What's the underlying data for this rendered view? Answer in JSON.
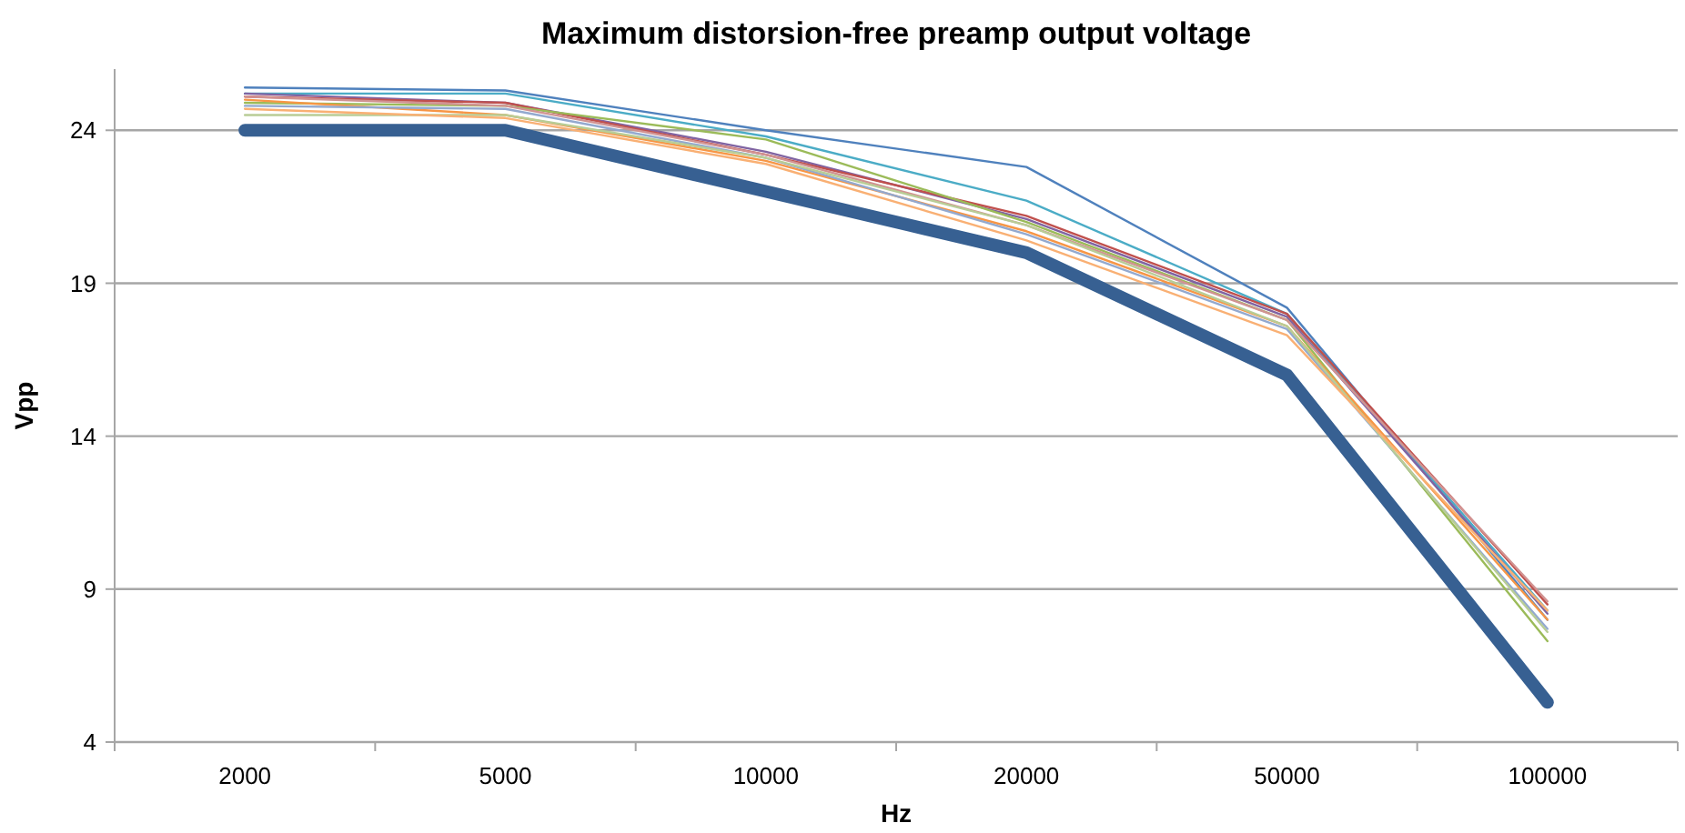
{
  "chart_data": {
    "type": "line",
    "title": "Maximum distorsion-free preamp output voltage",
    "xlabel": "Hz",
    "ylabel": "Vpp",
    "categories": [
      "2000",
      "5000",
      "10000",
      "20000",
      "50000",
      "100000"
    ],
    "ylim": [
      4,
      26
    ],
    "yticks": [
      4,
      9,
      14,
      19,
      24
    ],
    "grid": "y",
    "marker": "none",
    "line_style": "solid",
    "series": [
      {
        "color": "#4f81bd",
        "values": [
          25.4,
          25.3,
          24.0,
          22.8,
          18.2,
          8.0
        ]
      },
      {
        "color": "#4bacc6",
        "values": [
          25.2,
          25.2,
          23.8,
          21.7,
          18.0,
          8.3
        ]
      },
      {
        "color": "#8064a2",
        "values": [
          25.2,
          24.9,
          23.3,
          21.1,
          17.9,
          8.2
        ]
      },
      {
        "color": "#c0504d",
        "values": [
          25.1,
          24.9,
          23.2,
          21.2,
          18.0,
          8.5
        ]
      },
      {
        "color": "#9bbb59",
        "values": [
          24.9,
          24.8,
          23.7,
          21.0,
          17.8,
          7.3
        ]
      },
      {
        "color": "#f79646",
        "values": [
          25.0,
          24.5,
          23.0,
          20.7,
          17.6,
          8.0
        ]
      },
      {
        "color": "#93a9cf",
        "values": [
          24.8,
          24.7,
          23.1,
          20.6,
          17.5,
          7.7
        ]
      },
      {
        "color": "#d19392",
        "values": [
          25.1,
          24.8,
          23.2,
          20.9,
          17.8,
          8.6
        ]
      },
      {
        "color": "#b9cd96",
        "values": [
          24.5,
          24.5,
          23.1,
          20.9,
          17.6,
          7.6
        ]
      },
      {
        "color": "#f9b074",
        "values": [
          24.7,
          24.4,
          22.9,
          20.4,
          17.3,
          8.3
        ]
      },
      {
        "color": "#376092",
        "values": [
          24,
          24,
          22,
          20,
          16,
          5.3
        ]
      }
    ]
  }
}
